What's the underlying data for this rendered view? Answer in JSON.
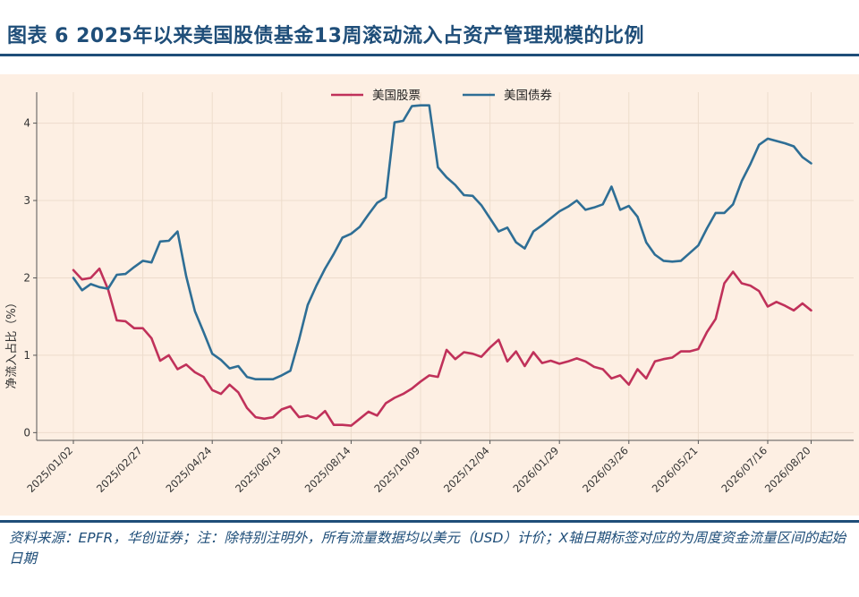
{
  "header": {
    "title": "图表 6 2025年以来美国股债基金13周滚动流入占资产管理规模的比例"
  },
  "footer": {
    "source": "资料来源：EPFR，华创证券；注：除特别注明外，所有流量数据均以美元（USD）计价；X轴日期标签对应的为周度资金流量区间的起始日期"
  },
  "colors": {
    "title": "#1f4e79",
    "chart_background": "#fdefe3",
    "equity": "#c0315a",
    "bond": "#2e6e95"
  },
  "chart_data": {
    "type": "line",
    "title": "",
    "xlabel": "",
    "ylabel": "净流入占比（%）",
    "ylim": [
      -0.1,
      4.4
    ],
    "yticks": [
      0,
      1,
      2,
      3,
      4
    ],
    "grid": true,
    "legend_position": "top-center",
    "x_tick_labels": [
      "2025/01/02",
      "2025/02/27",
      "2025/04/24",
      "2025/06/19",
      "2025/08/14",
      "2025/10/09",
      "2025/12/04",
      "2026/01/29",
      "2026/03/26",
      "2026/05/21",
      "2026/07/16",
      "2026/08/20"
    ],
    "x_tick_weeks": [
      0,
      8,
      16,
      24,
      32,
      40,
      48,
      56,
      64,
      72,
      80,
      85
    ],
    "x_weeks": [
      0,
      1,
      2,
      3,
      4,
      5,
      6,
      7,
      8,
      9,
      10,
      11,
      12,
      13,
      14,
      15,
      16,
      17,
      18,
      19,
      20,
      21,
      22,
      23,
      24,
      25,
      26,
      27,
      28,
      29,
      30,
      31,
      32,
      33,
      34,
      35,
      36,
      37,
      38,
      39,
      40,
      41,
      42,
      43,
      44,
      45,
      46,
      47,
      48,
      49,
      50,
      51,
      52,
      53,
      54,
      55,
      56,
      57,
      58,
      59,
      60,
      61,
      62,
      63,
      64,
      65,
      66,
      67,
      68,
      69,
      70,
      71,
      72,
      73,
      74,
      75,
      76,
      77,
      78,
      79,
      80,
      81,
      82,
      83,
      84,
      85
    ],
    "series": [
      {
        "name": "美国股票",
        "color": "#c0315a",
        "values": [
          2.1,
          1.98,
          2.0,
          2.12,
          1.85,
          1.45,
          1.44,
          1.35,
          1.35,
          1.22,
          0.93,
          1.0,
          0.82,
          0.88,
          0.78,
          0.72,
          0.55,
          0.5,
          0.62,
          0.52,
          0.32,
          0.2,
          0.18,
          0.2,
          0.3,
          0.34,
          0.2,
          0.22,
          0.18,
          0.28,
          0.1,
          0.1,
          0.09,
          0.18,
          0.27,
          0.22,
          0.38,
          0.45,
          0.5,
          0.57,
          0.66,
          0.74,
          0.72,
          1.07,
          0.95,
          1.04,
          1.02,
          0.98,
          1.1,
          1.2,
          0.92,
          1.05,
          0.86,
          1.04,
          0.9,
          0.93,
          0.89,
          0.92,
          0.96,
          0.92,
          0.85,
          0.82,
          0.7,
          0.74,
          0.62,
          0.82,
          0.7,
          0.92,
          0.95,
          0.97,
          1.05,
          1.05,
          1.08,
          1.3,
          1.47,
          1.93,
          2.08,
          1.93,
          1.9,
          1.83,
          1.63,
          1.69,
          1.64,
          1.58,
          1.67,
          1.58
        ]
      },
      {
        "name": "美国债券",
        "color": "#2e6e95",
        "values": [
          2.0,
          1.84,
          1.92,
          1.88,
          1.86,
          2.04,
          2.05,
          2.14,
          2.22,
          2.2,
          2.47,
          2.48,
          2.6,
          2.02,
          1.57,
          1.3,
          1.02,
          0.94,
          0.83,
          0.86,
          0.72,
          0.69,
          0.69,
          0.69,
          0.74,
          0.8,
          1.2,
          1.65,
          1.9,
          2.12,
          2.31,
          2.52,
          2.57,
          2.66,
          2.82,
          2.97,
          3.04,
          4.01,
          4.03,
          4.22,
          4.23,
          4.23,
          3.43,
          3.3,
          3.2,
          3.07,
          3.06,
          2.94,
          2.77,
          2.6,
          2.65,
          2.46,
          2.38,
          2.6,
          2.68,
          2.77,
          2.86,
          2.92,
          3.0,
          2.88,
          2.91,
          2.95,
          3.18,
          2.88,
          2.93,
          2.79,
          2.46,
          2.3,
          2.22,
          2.21,
          2.22,
          2.32,
          2.42,
          2.64,
          2.84,
          2.84,
          2.95,
          3.25,
          3.47,
          3.72,
          3.8,
          3.77,
          3.74,
          3.7,
          3.56,
          3.48
        ]
      }
    ]
  }
}
